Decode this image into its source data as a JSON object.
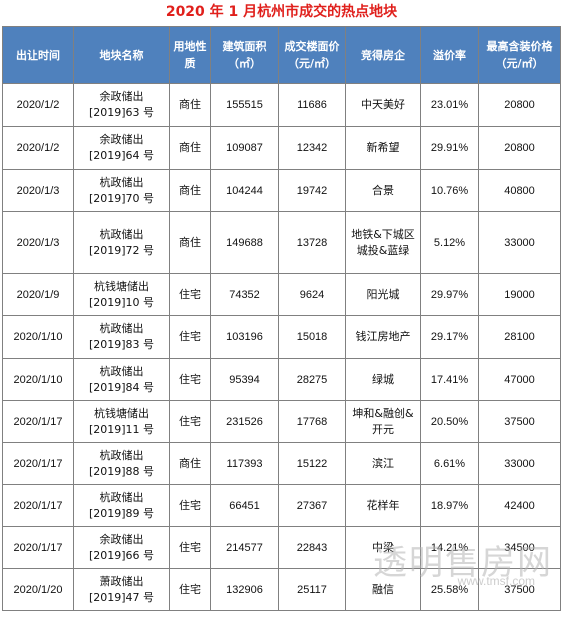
{
  "title": "2020 年 1 月杭州市成交的热点地块",
  "headers": [
    "出让时间",
    "地块名称",
    "用地性质",
    "建筑面积（㎡）",
    "成交楼面价（元/㎡）",
    "竞得房企",
    "溢价率",
    "最高含装价格（元/㎡）"
  ],
  "rows": [
    {
      "date": "2020/1/2",
      "plot_line1": "余政储出",
      "plot_line2": "[2019]63 号",
      "use": "商住",
      "area": "155515",
      "price": "11686",
      "developer": "中天美好",
      "premium": "23.01%",
      "max_price": "20800"
    },
    {
      "date": "2020/1/2",
      "plot_line1": "余政储出",
      "plot_line2": "[2019]64 号",
      "use": "商住",
      "area": "109087",
      "price": "12342",
      "developer": "新希望",
      "premium": "29.91%",
      "max_price": "20800"
    },
    {
      "date": "2020/1/3",
      "plot_line1": "杭政储出",
      "plot_line2": "[2019]70 号",
      "use": "商住",
      "area": "104244",
      "price": "19742",
      "developer": "合景",
      "premium": "10.76%",
      "max_price": "40800"
    },
    {
      "date": "2020/1/3",
      "plot_line1": "杭政储出",
      "plot_line2": "[2019]72 号",
      "use": "商住",
      "area": "149688",
      "price": "13728",
      "developer": "地铁&下城区城投&蓝绿",
      "premium": "5.12%",
      "max_price": "33000"
    },
    {
      "date": "2020/1/9",
      "plot_line1": "杭钱塘储出",
      "plot_line2": "[2019]10 号",
      "use": "住宅",
      "area": "74352",
      "price": "9624",
      "developer": "阳光城",
      "premium": "29.97%",
      "max_price": "19000"
    },
    {
      "date": "2020/1/10",
      "plot_line1": "杭政储出",
      "plot_line2": "[2019]83 号",
      "use": "住宅",
      "area": "103196",
      "price": "15018",
      "developer": "钱江房地产",
      "premium": "29.17%",
      "max_price": "28100"
    },
    {
      "date": "2020/1/10",
      "plot_line1": "杭政储出",
      "plot_line2": "[2019]84 号",
      "use": "住宅",
      "area": "95394",
      "price": "28275",
      "developer": "绿城",
      "premium": "17.41%",
      "max_price": "47000"
    },
    {
      "date": "2020/1/17",
      "plot_line1": "杭钱塘储出",
      "plot_line2": "[2019]11 号",
      "use": "住宅",
      "area": "231526",
      "price": "17768",
      "developer": "坤和&融创&开元",
      "premium": "20.50%",
      "max_price": "37500"
    },
    {
      "date": "2020/1/17",
      "plot_line1": "杭政储出",
      "plot_line2": "[2019]88 号",
      "use": "商住",
      "area": "117393",
      "price": "15122",
      "developer": "滨江",
      "premium": "6.61%",
      "max_price": "33000"
    },
    {
      "date": "2020/1/17",
      "plot_line1": "杭政储出",
      "plot_line2": "[2019]89 号",
      "use": "住宅",
      "area": "66451",
      "price": "27367",
      "developer": "花样年",
      "premium": "18.97%",
      "max_price": "42400"
    },
    {
      "date": "2020/1/17",
      "plot_line1": "余政储出",
      "plot_line2": "[2019]66 号",
      "use": "住宅",
      "area": "214577",
      "price": "22843",
      "developer": "中梁",
      "premium": "14.21%",
      "max_price": "34500"
    },
    {
      "date": "2020/1/20",
      "plot_line1": "萧政储出",
      "plot_line2": "[2019]47 号",
      "use": "住宅",
      "area": "132906",
      "price": "25117",
      "developer": "融信",
      "premium": "25.58%",
      "max_price": "37500"
    }
  ],
  "watermark": "透明售房网",
  "watermark_url": "www.tmsf.com",
  "colors": {
    "title": "#e0201c",
    "header_bg": "#4f81bd",
    "header_text": "#ffffff",
    "border": "#808080"
  }
}
